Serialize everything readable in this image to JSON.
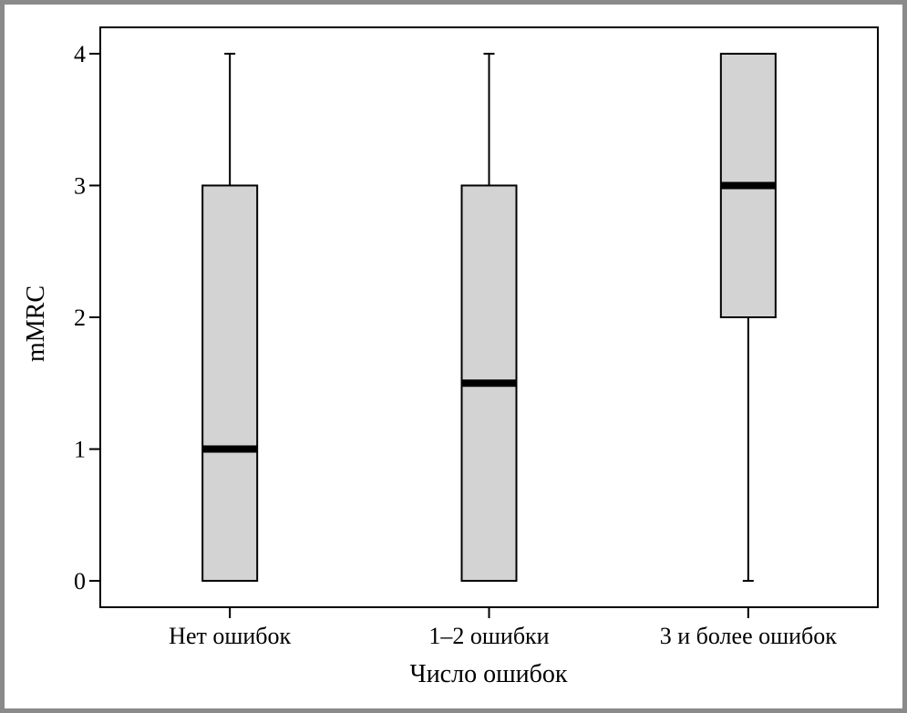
{
  "chart_data": {
    "type": "boxplot",
    "xlabel": "Число ошибок",
    "ylabel": "mMRC",
    "categories": [
      "Нет ошибок",
      "1–2 ошибки",
      "3 и более ошибок"
    ],
    "boxes": [
      {
        "category": "Нет ошибок",
        "min": 0,
        "q1": 0,
        "median": 1,
        "q3": 3,
        "max": 4
      },
      {
        "category": "1–2 ошибки",
        "min": 0,
        "q1": 0,
        "median": 1.5,
        "q3": 3,
        "max": 4
      },
      {
        "category": "3 и более ошибок",
        "min": 0,
        "q1": 2,
        "median": 3,
        "q3": 4,
        "max": 4
      }
    ],
    "ylim": [
      -0.2,
      4.2
    ],
    "yticks": [
      0,
      1,
      2,
      3,
      4
    ],
    "grid": false,
    "colors": {
      "box_fill": "#d3d3d3",
      "line": "#000000",
      "frame": "#8a8a8a"
    }
  }
}
